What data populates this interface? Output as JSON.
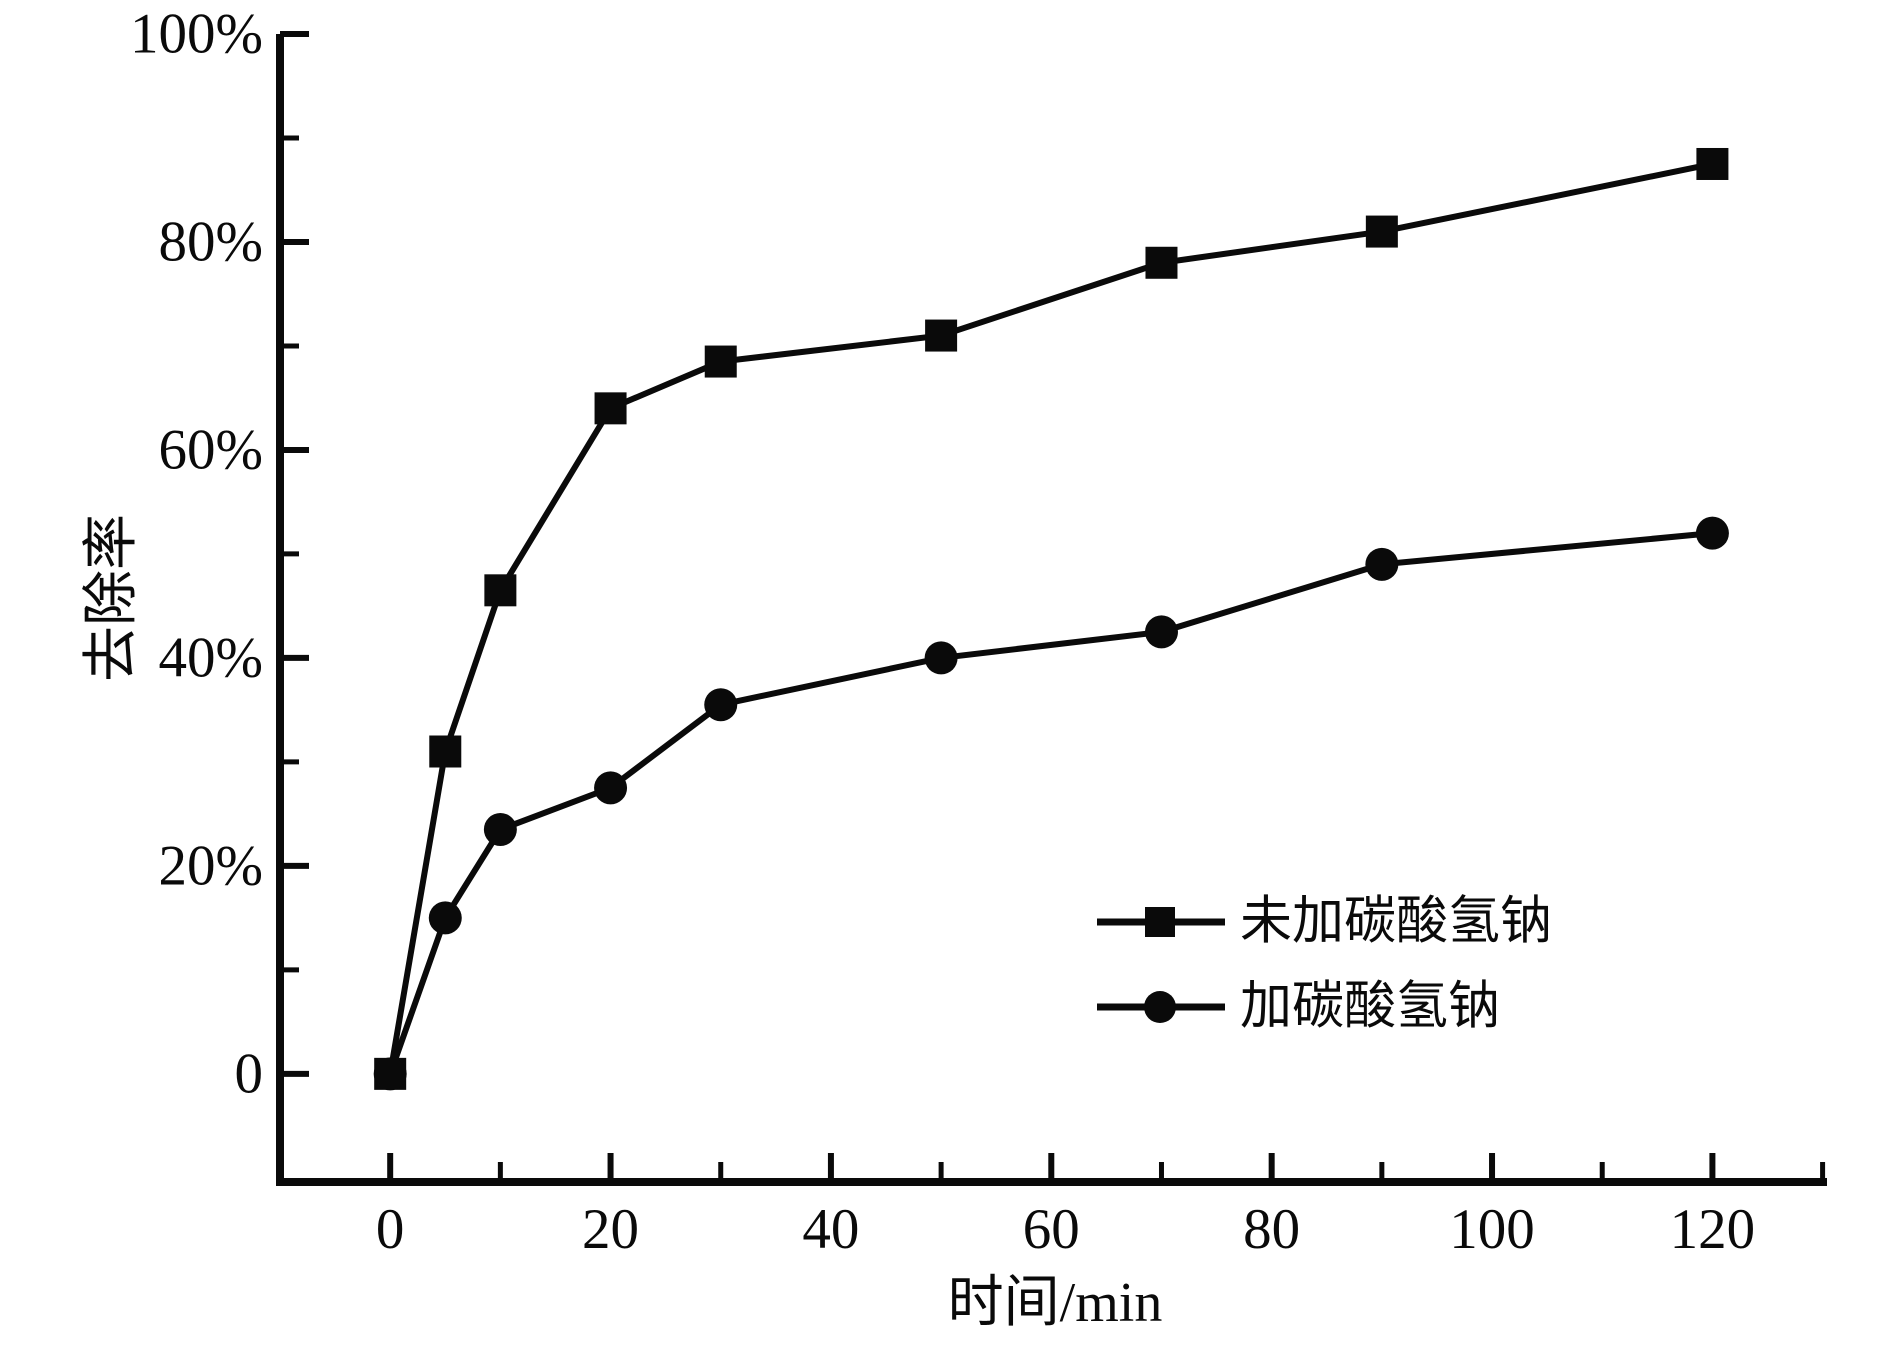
{
  "chart_data": {
    "type": "line",
    "title": "",
    "xlabel": "时间/min",
    "ylabel": "去除率",
    "grid": false,
    "legend_position": "inside-lower-right",
    "xlim": [
      -10,
      130.4
    ],
    "ylim": [
      -10.4,
      100
    ],
    "x_ticks_major": [
      0,
      20,
      40,
      60,
      80,
      100,
      120
    ],
    "x_ticks_minor": [
      10,
      30,
      50,
      70,
      90,
      110,
      130
    ],
    "x_tick_labels": [
      "0",
      "20",
      "40",
      "60",
      "80",
      "100",
      "120"
    ],
    "y_ticks_major": [
      0,
      20,
      40,
      60,
      80,
      100
    ],
    "y_ticks_minor": [
      10,
      30,
      50,
      70,
      90
    ],
    "y_tick_labels": [
      "0",
      "20%",
      "40%",
      "60%",
      "80%",
      "100%"
    ],
    "colors": {
      "ink": "#0a0a0a",
      "background": "#ffffff"
    },
    "series": [
      {
        "name": "未加碳酸氢钠",
        "marker": "square",
        "x": [
          0,
          5,
          10,
          20,
          30,
          50,
          70,
          90,
          120
        ],
        "values": [
          0,
          31,
          46.5,
          64,
          68.5,
          71,
          78,
          81,
          87.5
        ]
      },
      {
        "name": "加碳酸氢钠",
        "marker": "circle",
        "x": [
          0,
          5,
          10,
          20,
          30,
          50,
          70,
          90,
          120
        ],
        "values": [
          0,
          15,
          23.5,
          27.5,
          35.5,
          40,
          42.5,
          49,
          52
        ]
      }
    ]
  },
  "legend": {
    "items": [
      {
        "label": "未加碳酸氢钠",
        "marker": "square"
      },
      {
        "label": "加碳酸氢钠",
        "marker": "circle"
      }
    ]
  }
}
